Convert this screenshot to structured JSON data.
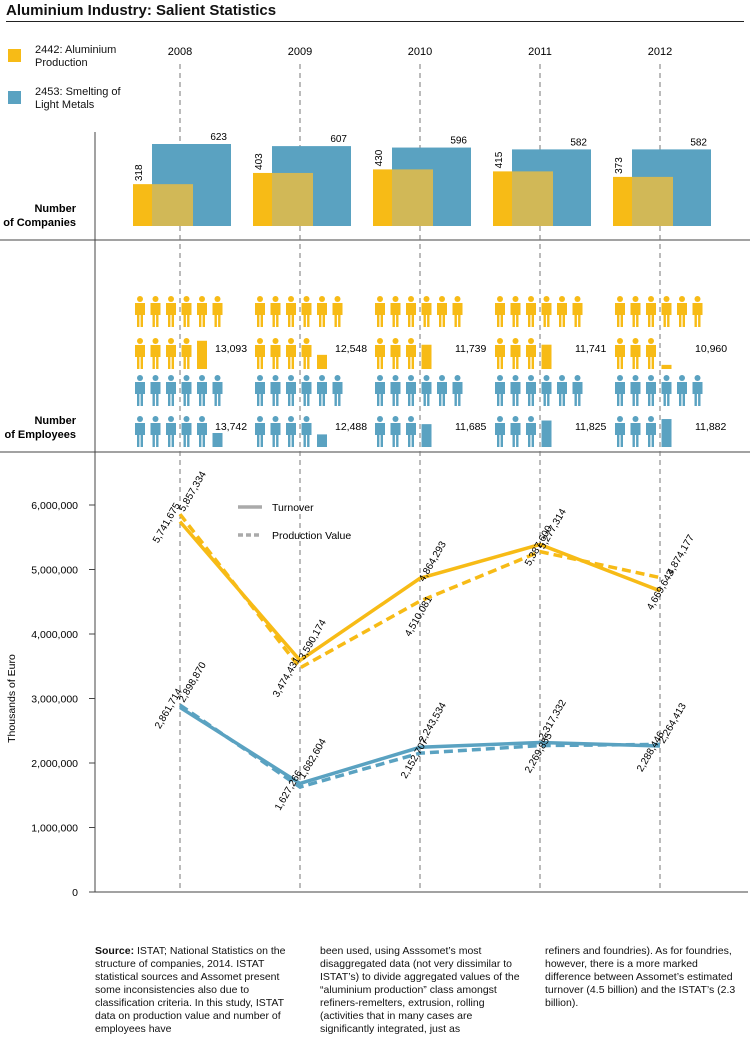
{
  "title": "Aluminium Industry: Salient Statistics",
  "colors": {
    "aluminium": "#f7bb16",
    "smelting": "#5aa2c1",
    "overlap": "#d1b857",
    "axis": "#444444",
    "legend_line": "#aaaaaa"
  },
  "legend": {
    "aluminium": "2442: Aluminium Production",
    "smelting": "2453: Smelting of Light Metals"
  },
  "years": [
    "2008",
    "2009",
    "2010",
    "2011",
    "2012"
  ],
  "sections": {
    "companies_label": [
      "Number",
      "of Companies"
    ],
    "employees_label": [
      "Number",
      "of Employees"
    ]
  },
  "chart_data": [
    {
      "type": "bar",
      "categories": [
        "2008",
        "2009",
        "2010",
        "2011",
        "2012"
      ],
      "series": [
        {
          "name": "2442: Aluminium Production",
          "values": [
            318,
            403,
            430,
            415,
            373
          ]
        },
        {
          "name": "2453: Smelting of Light Metals",
          "values": [
            623,
            607,
            596,
            582,
            582
          ]
        }
      ],
      "labels": {
        "aluminium": [
          "318",
          "403",
          "430",
          "415",
          "373"
        ],
        "smelting": [
          "623",
          "607",
          "596",
          "582",
          "582"
        ]
      }
    },
    {
      "type": "bar",
      "categories": [
        "2008",
        "2009",
        "2010",
        "2011",
        "2012"
      ],
      "series": [
        {
          "name": "2442: Aluminium Production",
          "values": [
            13093,
            12548,
            11739,
            11741,
            10960
          ]
        },
        {
          "name": "2453: Smelting of Light Metals",
          "values": [
            13742,
            12488,
            11685,
            11825,
            11882
          ]
        }
      ],
      "labels": {
        "aluminium": [
          "13,093",
          "12,548",
          "11,739",
          "11,741",
          "10,960"
        ],
        "smelting": [
          "13,742",
          "12,488",
          "11,685",
          "11,825",
          "11,882"
        ]
      }
    },
    {
      "type": "line",
      "x": [
        "2008",
        "2009",
        "2010",
        "2011",
        "2012"
      ],
      "ylabel": "Thousands of Euro",
      "ylim": [
        0,
        6000000
      ],
      "yticks": [
        0,
        1000000,
        2000000,
        3000000,
        4000000,
        5000000,
        6000000
      ],
      "ytick_labels": [
        "0",
        "1,000,000",
        "2,000,000",
        "3,000,000",
        "4,000,000",
        "5,000,000",
        "6,000,000"
      ],
      "legend": [
        {
          "label": "Turnover",
          "style": "solid"
        },
        {
          "label": "Production Value",
          "style": "dashed"
        }
      ],
      "series": [
        {
          "group": "aluminium",
          "style": "solid",
          "values": [
            5741675,
            3590174,
            4864293,
            5387600,
            4669643
          ],
          "labels": [
            "5,741,675",
            "3,590,174",
            "4,864,293",
            "5,387,600",
            "4,669,643"
          ]
        },
        {
          "group": "aluminium",
          "style": "dashed",
          "values": [
            5857334,
            3474431,
            4510081,
            5277314,
            4874177
          ],
          "labels": [
            "5,857,334",
            "3,474,431",
            "4,510,081",
            "5,277,314",
            "4,874,177"
          ]
        },
        {
          "group": "smelting",
          "style": "solid",
          "values": [
            2861714,
            1682604,
            2243534,
            2317332,
            2264413
          ],
          "labels": [
            "2,861,714",
            "1,682,604",
            "2,243,534",
            "2,317,332",
            "2,264,413"
          ]
        },
        {
          "group": "smelting",
          "style": "dashed",
          "values": [
            2898870,
            1627266,
            2152707,
            2269855,
            2288446
          ],
          "labels": [
            "2,898,870",
            "1,627,266",
            "2,152,707",
            "2,269,855",
            "2,288,446"
          ]
        }
      ]
    }
  ],
  "source": {
    "label": "Source:",
    "col1": "ISTAT; National Statistics on the structure of companies, 2014. ISTAT statistical sources and Assomet present some inconsistencies also due to classification criteria. In this study, ISTAT data on production value and number of employees have",
    "col2": "been used, using Asssomet’s most disaggregated data (not very dissimilar to ISTAT’s) to divide aggregated values of the “aluminium production” class amongst refiners-remelters, extrusion, rolling (activities that in many cases are significantly integrated, just as",
    "col3": "refiners and foundries). As for foundries, however, there is a more marked difference between Assomet’s estimated turnover (4.5 billion) and the ISTAT’s (2.3 billion)."
  }
}
